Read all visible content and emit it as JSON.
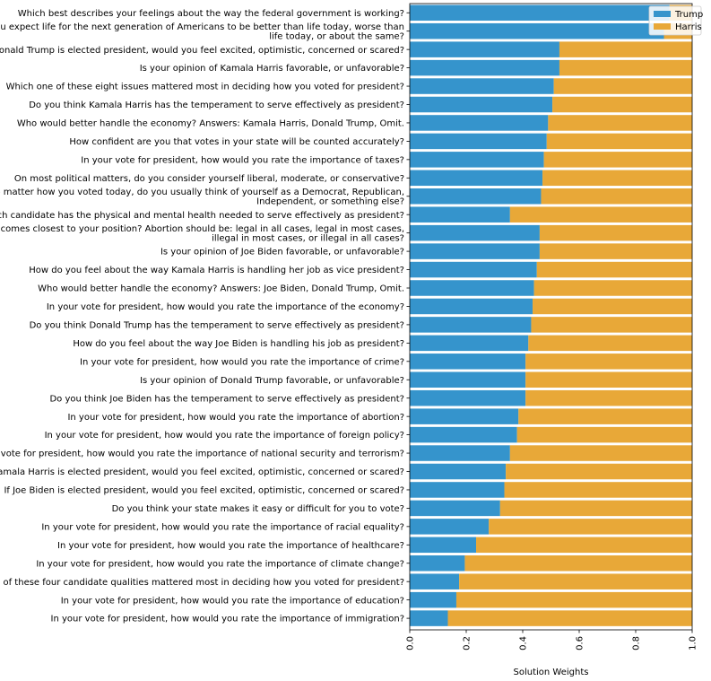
{
  "chart_data": {
    "type": "bar",
    "orientation": "horizontal",
    "stacked": true,
    "title": "",
    "xlabel": "Solution Weights",
    "ylabel": "",
    "xlim": [
      0.0,
      1.0
    ],
    "xticks": [
      "0.0",
      "0.2",
      "0.4",
      "0.6",
      "0.8",
      "1.0"
    ],
    "grid": false,
    "legend_position": "top-right",
    "series": [
      {
        "name": "Trump",
        "color": "#3594CC"
      },
      {
        "name": "Harris",
        "color": "#E8A838"
      }
    ],
    "categories": [
      [
        "Which best describes your feelings about the way the federal government is working?"
      ],
      [
        "Do you expect life for the next generation of Americans to be better than life today, worse than",
        "life today, or about the same?"
      ],
      [
        "If Donald Trump is elected president, would you feel excited, optimistic, concerned or scared?"
      ],
      [
        "Is your opinion of Kamala Harris favorable, or unfavorable?"
      ],
      [
        "Which one of these eight issues mattered most in deciding how you voted for president?"
      ],
      [
        "Do you think Kamala Harris has the temperament to serve effectively as president?"
      ],
      [
        "Who would better handle the economy? Answers: Kamala Harris, Donald Trump, Omit."
      ],
      [
        "How confident are you that votes in your state will be counted accurately?"
      ],
      [
        "In your vote for president, how would you rate the importance of taxes?"
      ],
      [
        "On most political matters, do you consider yourself liberal, moderate, or conservative?"
      ],
      [
        "No matter how you voted today, do you usually think of yourself as a Democrat, Republican,",
        "Independent, or something else?"
      ],
      [
        "Which candidate has the physical and mental health needed to serve effectively as president?"
      ],
      [
        "Which comes closest to your position? Abortion should be: legal in all cases, legal in most cases,",
        "illegal in most cases, or illegal in all cases?"
      ],
      [
        "Is your opinion of Joe Biden favorable, or unfavorable?"
      ],
      [
        "How do you feel about the way Kamala Harris is handling her job as vice president?"
      ],
      [
        "Who would better handle the economy? Answers: Joe Biden, Donald Trump, Omit."
      ],
      [
        "In your vote for president, how would you rate the importance of the economy?"
      ],
      [
        "Do you think Donald Trump has the temperament to serve effectively as president?"
      ],
      [
        "How do you feel about the way Joe Biden is handling his job as president?"
      ],
      [
        "In your vote for president, how would you rate the importance of crime?"
      ],
      [
        "Is your opinion of Donald Trump favorable, or unfavorable?"
      ],
      [
        "Do you think Joe Biden has the temperament to serve effectively as president?"
      ],
      [
        "In your vote for president, how would you rate the importance of abortion?"
      ],
      [
        "In your vote for president, how would you rate the importance of foreign policy?"
      ],
      [
        "In your vote for president, how would you rate the importance of national security and terrorism?"
      ],
      [
        "If Kamala Harris is elected president, would you feel excited, optimistic, concerned or scared?"
      ],
      [
        "If Joe Biden is elected president, would you feel excited, optimistic, concerned or scared?"
      ],
      [
        "Do you think your state makes it easy or difficult for you to vote?"
      ],
      [
        "In your vote for president, how would you rate the importance of racial equality?"
      ],
      [
        "In your vote for president, how would you rate the importance of healthcare?"
      ],
      [
        "In your vote for president, how would you rate the importance of climate change?"
      ],
      [
        "Which one of these four candidate qualities mattered most in deciding how you voted for president?"
      ],
      [
        "In your vote for president, how would you rate the importance of education?"
      ],
      [
        "In your vote for president, how would you rate the importance of immigration?"
      ]
    ],
    "trump_values": [
      0.92,
      0.9,
      0.53,
      0.53,
      0.51,
      0.505,
      0.49,
      0.485,
      0.475,
      0.47,
      0.465,
      0.355,
      0.46,
      0.46,
      0.45,
      0.44,
      0.435,
      0.43,
      0.42,
      0.41,
      0.41,
      0.41,
      0.385,
      0.38,
      0.355,
      0.34,
      0.335,
      0.32,
      0.28,
      0.235,
      0.195,
      0.175,
      0.165,
      0.135
    ]
  }
}
